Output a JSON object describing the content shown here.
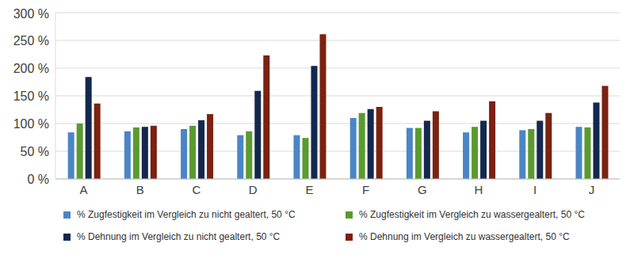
{
  "chart_data": {
    "type": "bar",
    "categories": [
      "A",
      "B",
      "C",
      "D",
      "E",
      "F",
      "G",
      "H",
      "I",
      "J"
    ],
    "series": [
      {
        "name": "% Zugfestigkeit im Vergleich zu nicht gealtert, 50 °C",
        "color": "#4a86c5",
        "values": [
          84,
          86,
          90,
          79,
          79,
          110,
          92,
          84,
          88,
          94
        ]
      },
      {
        "name": "% Zugfestigkeit im Vergleich zu wassergealtert, 50 °C",
        "color": "#5b9a2f",
        "values": [
          100,
          93,
          96,
          86,
          74,
          119,
          92,
          94,
          90,
          93
        ]
      },
      {
        "name": "% Dehnung im Vergleich zu nicht gealtert, 50 °C",
        "color": "#14284f",
        "values": [
          184,
          94,
          106,
          159,
          204,
          126,
          105,
          105,
          105,
          138
        ]
      },
      {
        "name": "% Dehnung im Vergleich zu wassergealtert, 50 °C",
        "color": "#7b2211",
        "values": [
          136,
          96,
          117,
          223,
          261,
          130,
          122,
          140,
          119,
          168
        ]
      }
    ],
    "ylim": [
      0,
      300
    ],
    "yticks": [
      {
        "value": 0,
        "label": "0 %"
      },
      {
        "value": 50,
        "label": "50 %"
      },
      {
        "value": 100,
        "label": "100 %"
      },
      {
        "value": 150,
        "label": "150 %"
      },
      {
        "value": 200,
        "label": "200 %"
      },
      {
        "value": 250,
        "label": "250 %"
      },
      {
        "value": 300,
        "label": "300 %"
      }
    ],
    "grid": true,
    "legend": "bottom"
  }
}
